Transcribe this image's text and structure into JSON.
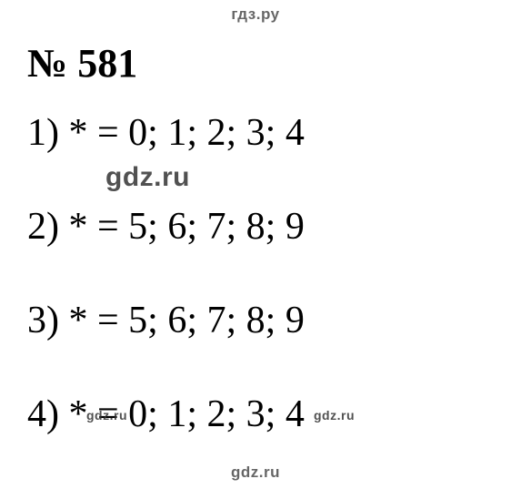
{
  "header": "гдз.ру",
  "title": "№ 581",
  "lines": [
    "1) * = 0; 1; 2; 3; 4",
    "2) * = 5; 6; 7; 8; 9",
    "3) * = 5; 6; 7; 8; 9",
    "4) * = 0; 1; 2; 3; 4"
  ],
  "watermark": "gdz.ru",
  "footer": "gdz.ru",
  "colors": {
    "background": "#ffffff",
    "text": "#000000",
    "watermark": "#666666"
  },
  "fonts": {
    "body_family": "Times New Roman",
    "body_size_pt": 32,
    "title_size_pt": 33,
    "watermark_family": "Arial",
    "watermark_main_size_pt": 23,
    "watermark_small_size_pt": 11
  }
}
